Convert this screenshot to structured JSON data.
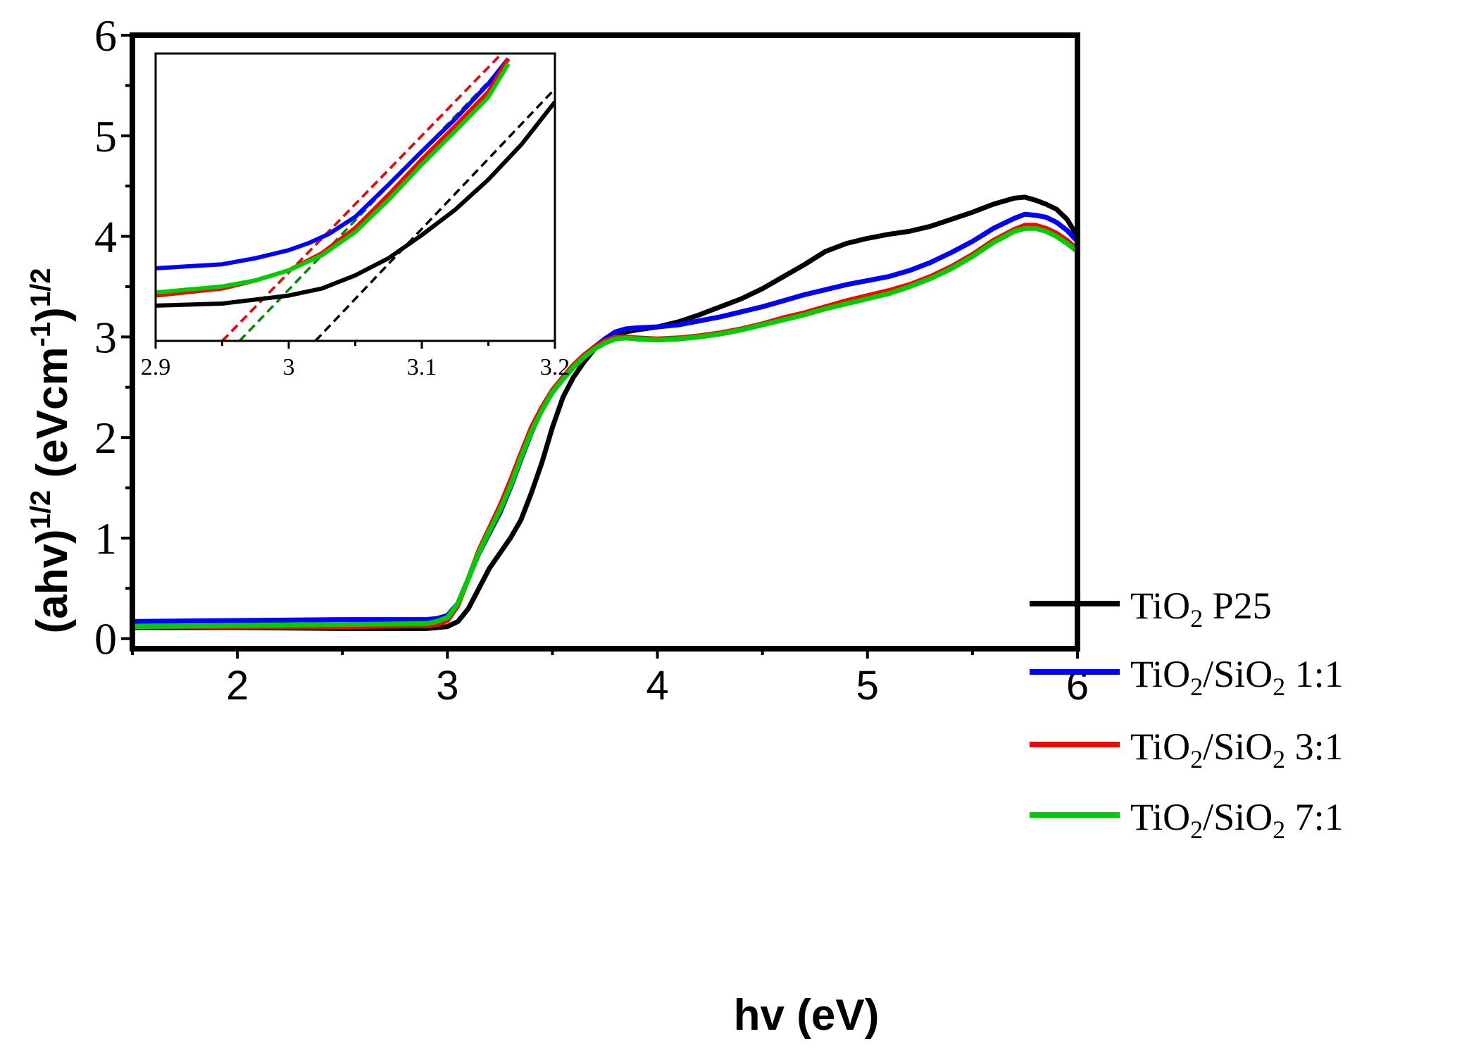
{
  "chart_data": [
    {
      "type": "line",
      "xlabel": "hv (eV)",
      "ylabel": {
        "base1": "(ahv)",
        "sup1": "1/2",
        "base2": " (eVcm",
        "sup2": "-1",
        "base3": ")",
        "sup3": "1/2"
      },
      "xlim": [
        1.5,
        6
      ],
      "ylim": [
        -0.1,
        6
      ],
      "x_ticks": [
        "2",
        "3",
        "4",
        "5",
        "6"
      ],
      "y_ticks": [
        "0",
        "1",
        "2",
        "3",
        "4",
        "5",
        "6"
      ],
      "legend_position": "lower-right",
      "series": [
        {
          "id": "p25",
          "legend": {
            "a": "TiO",
            "b": "2",
            "c": " P25"
          },
          "color": "#000000",
          "points": [
            [
              1.5,
              0.11
            ],
            [
              2.0,
              0.11
            ],
            [
              2.5,
              0.1
            ],
            [
              2.9,
              0.1
            ],
            [
              3.0,
              0.12
            ],
            [
              3.05,
              0.17
            ],
            [
              3.1,
              0.3
            ],
            [
              3.15,
              0.5
            ],
            [
              3.2,
              0.7
            ],
            [
              3.25,
              0.85
            ],
            [
              3.3,
              1.0
            ],
            [
              3.35,
              1.18
            ],
            [
              3.4,
              1.45
            ],
            [
              3.45,
              1.75
            ],
            [
              3.5,
              2.1
            ],
            [
              3.55,
              2.4
            ],
            [
              3.6,
              2.6
            ],
            [
              3.65,
              2.75
            ],
            [
              3.7,
              2.88
            ],
            [
              3.75,
              2.97
            ],
            [
              3.8,
              3.02
            ],
            [
              3.85,
              3.05
            ],
            [
              3.9,
              3.07
            ],
            [
              4.0,
              3.1
            ],
            [
              4.1,
              3.15
            ],
            [
              4.2,
              3.22
            ],
            [
              4.3,
              3.3
            ],
            [
              4.4,
              3.38
            ],
            [
              4.5,
              3.48
            ],
            [
              4.6,
              3.6
            ],
            [
              4.7,
              3.72
            ],
            [
              4.8,
              3.85
            ],
            [
              4.9,
              3.93
            ],
            [
              5.0,
              3.98
            ],
            [
              5.1,
              4.02
            ],
            [
              5.2,
              4.05
            ],
            [
              5.3,
              4.1
            ],
            [
              5.4,
              4.17
            ],
            [
              5.5,
              4.24
            ],
            [
              5.6,
              4.32
            ],
            [
              5.7,
              4.38
            ],
            [
              5.75,
              4.39
            ],
            [
              5.8,
              4.36
            ],
            [
              5.85,
              4.32
            ],
            [
              5.9,
              4.27
            ],
            [
              5.95,
              4.17
            ],
            [
              6.0,
              4.0
            ]
          ]
        },
        {
          "id": "s11",
          "legend": {
            "a": "TiO",
            "b": "2",
            "c": "/SiO",
            "d": "2",
            "e": " 1:1"
          },
          "color": "#0000ff",
          "points": [
            [
              1.5,
              0.17
            ],
            [
              2.0,
              0.18
            ],
            [
              2.5,
              0.19
            ],
            [
              2.9,
              0.19
            ],
            [
              2.95,
              0.2
            ],
            [
              3.0,
              0.23
            ],
            [
              3.05,
              0.35
            ],
            [
              3.1,
              0.6
            ],
            [
              3.15,
              0.85
            ],
            [
              3.2,
              1.05
            ],
            [
              3.25,
              1.25
            ],
            [
              3.3,
              1.5
            ],
            [
              3.35,
              1.78
            ],
            [
              3.4,
              2.05
            ],
            [
              3.45,
              2.28
            ],
            [
              3.5,
              2.45
            ],
            [
              3.55,
              2.58
            ],
            [
              3.6,
              2.7
            ],
            [
              3.65,
              2.8
            ],
            [
              3.7,
              2.9
            ],
            [
              3.75,
              2.98
            ],
            [
              3.8,
              3.05
            ],
            [
              3.85,
              3.08
            ],
            [
              3.9,
              3.09
            ],
            [
              4.0,
              3.1
            ],
            [
              4.1,
              3.12
            ],
            [
              4.2,
              3.16
            ],
            [
              4.3,
              3.2
            ],
            [
              4.4,
              3.25
            ],
            [
              4.5,
              3.3
            ],
            [
              4.6,
              3.36
            ],
            [
              4.7,
              3.42
            ],
            [
              4.8,
              3.47
            ],
            [
              4.9,
              3.52
            ],
            [
              5.0,
              3.56
            ],
            [
              5.1,
              3.6
            ],
            [
              5.2,
              3.66
            ],
            [
              5.3,
              3.74
            ],
            [
              5.4,
              3.84
            ],
            [
              5.5,
              3.95
            ],
            [
              5.6,
              4.08
            ],
            [
              5.7,
              4.18
            ],
            [
              5.75,
              4.22
            ],
            [
              5.8,
              4.21
            ],
            [
              5.85,
              4.19
            ],
            [
              5.9,
              4.14
            ],
            [
              5.95,
              4.06
            ],
            [
              6.0,
              3.95
            ]
          ]
        },
        {
          "id": "s31",
          "legend": {
            "a": "TiO",
            "b": "2",
            "c": "/SiO",
            "d": "2",
            "e": " 3:1"
          },
          "color": "#ff0000",
          "points": [
            [
              1.5,
              0.12
            ],
            [
              2.0,
              0.12
            ],
            [
              2.5,
              0.12
            ],
            [
              2.9,
              0.13
            ],
            [
              2.95,
              0.14
            ],
            [
              3.0,
              0.18
            ],
            [
              3.05,
              0.33
            ],
            [
              3.1,
              0.6
            ],
            [
              3.15,
              0.88
            ],
            [
              3.2,
              1.1
            ],
            [
              3.25,
              1.32
            ],
            [
              3.3,
              1.57
            ],
            [
              3.35,
              1.84
            ],
            [
              3.4,
              2.1
            ],
            [
              3.45,
              2.3
            ],
            [
              3.5,
              2.47
            ],
            [
              3.55,
              2.6
            ],
            [
              3.6,
              2.72
            ],
            [
              3.65,
              2.82
            ],
            [
              3.7,
              2.9
            ],
            [
              3.75,
              2.96
            ],
            [
              3.8,
              3.0
            ],
            [
              3.85,
              3.0
            ],
            [
              3.9,
              2.99
            ],
            [
              4.0,
              2.98
            ],
            [
              4.1,
              2.99
            ],
            [
              4.2,
              3.01
            ],
            [
              4.3,
              3.04
            ],
            [
              4.4,
              3.08
            ],
            [
              4.5,
              3.13
            ],
            [
              4.6,
              3.19
            ],
            [
              4.7,
              3.24
            ],
            [
              4.8,
              3.3
            ],
            [
              4.9,
              3.36
            ],
            [
              5.0,
              3.41
            ],
            [
              5.1,
              3.46
            ],
            [
              5.2,
              3.52
            ],
            [
              5.3,
              3.6
            ],
            [
              5.4,
              3.7
            ],
            [
              5.5,
              3.82
            ],
            [
              5.6,
              3.96
            ],
            [
              5.7,
              4.07
            ],
            [
              5.75,
              4.11
            ],
            [
              5.8,
              4.11
            ],
            [
              5.85,
              4.08
            ],
            [
              5.9,
              4.03
            ],
            [
              5.95,
              3.96
            ],
            [
              6.0,
              3.87
            ]
          ]
        },
        {
          "id": "s71",
          "legend": {
            "a": "TiO",
            "b": "2",
            "c": "/SiO",
            "d": "2",
            "e": " 7:1"
          },
          "color": "#00cc00",
          "points": [
            [
              1.5,
              0.12
            ],
            [
              2.0,
              0.13
            ],
            [
              2.5,
              0.14
            ],
            [
              2.9,
              0.15
            ],
            [
              2.95,
              0.17
            ],
            [
              3.0,
              0.21
            ],
            [
              3.05,
              0.35
            ],
            [
              3.1,
              0.6
            ],
            [
              3.15,
              0.86
            ],
            [
              3.2,
              1.07
            ],
            [
              3.25,
              1.28
            ],
            [
              3.3,
              1.52
            ],
            [
              3.35,
              1.8
            ],
            [
              3.4,
              2.06
            ],
            [
              3.45,
              2.27
            ],
            [
              3.5,
              2.45
            ],
            [
              3.55,
              2.58
            ],
            [
              3.6,
              2.7
            ],
            [
              3.65,
              2.8
            ],
            [
              3.7,
              2.88
            ],
            [
              3.75,
              2.94
            ],
            [
              3.8,
              2.98
            ],
            [
              3.85,
              2.99
            ],
            [
              3.9,
              2.98
            ],
            [
              4.0,
              2.97
            ],
            [
              4.1,
              2.98
            ],
            [
              4.2,
              3.0
            ],
            [
              4.3,
              3.03
            ],
            [
              4.4,
              3.07
            ],
            [
              4.5,
              3.12
            ],
            [
              4.6,
              3.17
            ],
            [
              4.7,
              3.22
            ],
            [
              4.8,
              3.28
            ],
            [
              4.9,
              3.33
            ],
            [
              5.0,
              3.38
            ],
            [
              5.1,
              3.43
            ],
            [
              5.2,
              3.5
            ],
            [
              5.3,
              3.58
            ],
            [
              5.4,
              3.68
            ],
            [
              5.5,
              3.8
            ],
            [
              5.6,
              3.94
            ],
            [
              5.7,
              4.05
            ],
            [
              5.75,
              4.08
            ],
            [
              5.8,
              4.08
            ],
            [
              5.85,
              4.05
            ],
            [
              5.9,
              4.0
            ],
            [
              5.95,
              3.93
            ],
            [
              6.0,
              3.85
            ]
          ]
        }
      ]
    },
    {
      "type": "line",
      "role": "inset",
      "xlim": [
        2.9,
        3.2
      ],
      "ylim": [
        3.0,
        5.85
      ],
      "x_ticks": [
        "2.9",
        "3",
        "3.1",
        "3.2"
      ],
      "series": [
        {
          "id": "p25",
          "color": "#000000",
          "points": [
            [
              2.9,
              3.35
            ],
            [
              2.95,
              3.37
            ],
            [
              3.0,
              3.45
            ],
            [
              3.025,
              3.52
            ],
            [
              3.05,
              3.65
            ],
            [
              3.075,
              3.82
            ],
            [
              3.1,
              4.05
            ],
            [
              3.125,
              4.3
            ],
            [
              3.15,
              4.6
            ],
            [
              3.175,
              4.95
            ],
            [
              3.2,
              5.37
            ]
          ]
        },
        {
          "id": "s11",
          "color": "#0000ff",
          "points": [
            [
              2.9,
              3.72
            ],
            [
              2.95,
              3.76
            ],
            [
              2.975,
              3.82
            ],
            [
              3.0,
              3.9
            ],
            [
              3.015,
              3.97
            ],
            [
              3.03,
              4.06
            ],
            [
              3.05,
              4.23
            ],
            [
              3.075,
              4.55
            ],
            [
              3.1,
              4.88
            ],
            [
              3.125,
              5.2
            ],
            [
              3.15,
              5.55
            ],
            [
              3.165,
              5.8
            ]
          ]
        },
        {
          "id": "s31",
          "color": "#ff0000",
          "points": [
            [
              2.9,
              3.45
            ],
            [
              2.95,
              3.52
            ],
            [
              2.975,
              3.6
            ],
            [
              3.0,
              3.7
            ],
            [
              3.025,
              3.87
            ],
            [
              3.05,
              4.12
            ],
            [
              3.075,
              4.45
            ],
            [
              3.1,
              4.8
            ],
            [
              3.125,
              5.13
            ],
            [
              3.15,
              5.47
            ],
            [
              3.165,
              5.8
            ]
          ]
        },
        {
          "id": "s71",
          "color": "#00cc00",
          "points": [
            [
              2.9,
              3.48
            ],
            [
              2.95,
              3.54
            ],
            [
              2.975,
              3.6
            ],
            [
              3.0,
              3.7
            ],
            [
              3.025,
              3.85
            ],
            [
              3.05,
              4.08
            ],
            [
              3.075,
              4.4
            ],
            [
              3.1,
              4.75
            ],
            [
              3.125,
              5.08
            ],
            [
              3.15,
              5.42
            ],
            [
              3.165,
              5.75
            ]
          ]
        }
      ],
      "tangent_lines": [
        {
          "id": "p25-fit",
          "color": "#000000",
          "points": [
            [
              3.02,
              3.0
            ],
            [
              3.2,
              5.5
            ]
          ]
        },
        {
          "id": "s11-fit",
          "color": "#0000ff",
          "points": [
            [
              2.95,
              3.0
            ],
            [
              3.16,
              5.85
            ]
          ]
        },
        {
          "id": "s31-fit",
          "color": "#ff0000",
          "points": [
            [
              2.95,
              3.0
            ],
            [
              3.16,
              5.85
            ]
          ]
        },
        {
          "id": "s71-fit",
          "color": "#008800",
          "points": [
            [
              2.963,
              3.0
            ],
            [
              3.163,
              5.75
            ]
          ]
        }
      ]
    }
  ]
}
